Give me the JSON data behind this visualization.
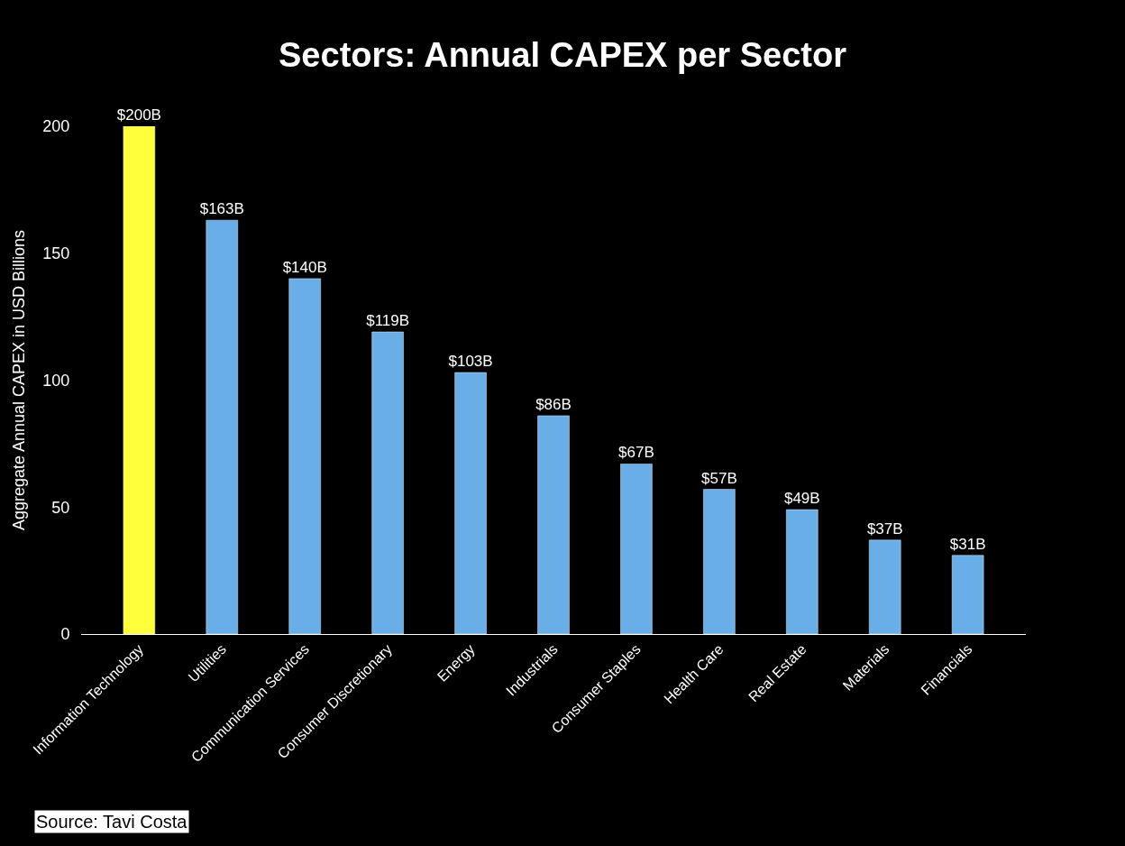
{
  "chart_data": {
    "type": "bar",
    "title": "Sectors: Annual CAPEX per Sector",
    "ylabel": "Aggregate Annual CAPEX in USD Billions",
    "categories": [
      "Information Technology",
      "Utilities",
      "Communication Services",
      "Consumer Discretionary",
      "Energy",
      "Industrials",
      "Consumer Staples",
      "Health Care",
      "Real Estate",
      "Materials",
      "Financials"
    ],
    "values": [
      200,
      163,
      140,
      119,
      103,
      86,
      67,
      57,
      49,
      37,
      31
    ],
    "colors": [
      "#ffff3c",
      "#6aaee8",
      "#6aaee8",
      "#6aaee8",
      "#6aaee8",
      "#6aaee8",
      "#6aaee8",
      "#6aaee8",
      "#6aaee8",
      "#6aaee8",
      "#6aaee8"
    ],
    "value_labels": [
      "$200B",
      "$163B",
      "$140B",
      "$119B",
      "$103B",
      "$86B",
      "$67B",
      "$57B",
      "$49B",
      "$37B",
      "$31B"
    ],
    "ylim": [
      0,
      200
    ],
    "yticks": [
      0,
      50,
      100,
      150,
      200
    ],
    "grid": false,
    "annotations": [
      "Source: Tavi Costa"
    ]
  }
}
